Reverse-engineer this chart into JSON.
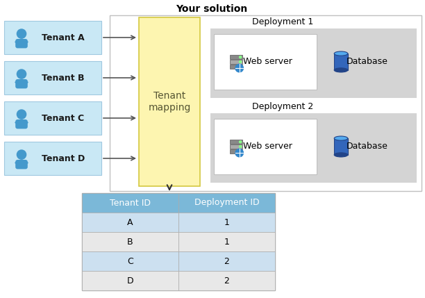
{
  "title": "Your solution",
  "tenant_boxes": [
    "Tenant A",
    "Tenant B",
    "Tenant C",
    "Tenant D"
  ],
  "tenant_box_color": "#c9e8f5",
  "tenant_box_border": "#a0c8e0",
  "mapping_box_color": "#fdf5b0",
  "mapping_box_border": "#d4c840",
  "mapping_text": "Tenant\nmapping",
  "deployment_labels": [
    "Deployment 1",
    "Deployment 2"
  ],
  "deployment_bg": "#d4d4d4",
  "webserver_box_color": "#ffffff",
  "table_header_color": "#7bb8d8",
  "table_row_blue": "#cce0f0",
  "table_row_gray": "#e8e8e8",
  "table_headers": [
    "Tenant ID",
    "Deployment ID"
  ],
  "table_data": [
    [
      "A",
      "1"
    ],
    [
      "B",
      "1"
    ],
    [
      "C",
      "2"
    ],
    [
      "D",
      "2"
    ]
  ],
  "solution_border": "#c0c0c0",
  "bg_color": "#ffffff",
  "person_color": "#4499cc",
  "server_color_dark": "#888888",
  "server_color_light": "#aaaaaa",
  "db_color_main": "#2255aa",
  "db_color_top": "#5599ee"
}
